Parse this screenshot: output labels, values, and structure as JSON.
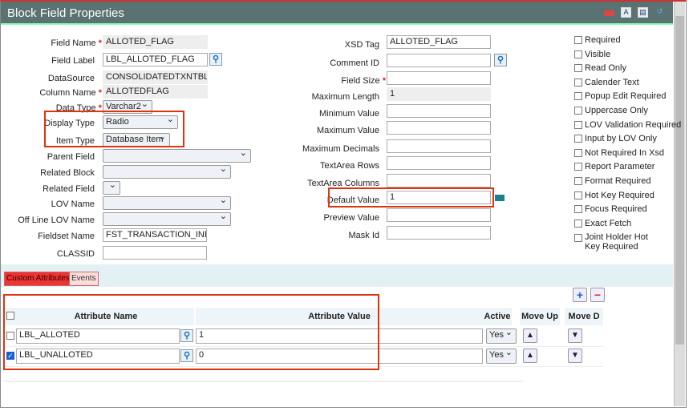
{
  "title": "Block Field Properties",
  "title_icons": [
    "minimize-icon",
    "pdf-icon",
    "export-icon",
    "help-icon"
  ],
  "left": {
    "field_name": {
      "label": "Field Name",
      "value": "ALLOTED_FLAG"
    },
    "field_label": {
      "label": "Field Label",
      "value": "LBL_ALLOTED_FLAG"
    },
    "datasource": {
      "label": "DataSource",
      "value": "CONSOLIDATEDTXNTBL"
    },
    "column_name": {
      "label": "Column Name",
      "value": "ALLOTEDFLAG"
    },
    "data_type": {
      "label": "Data Type",
      "value": "Varchar2"
    },
    "display_type": {
      "label": "Display Type",
      "value": "Radio"
    },
    "item_type": {
      "label": "Item Type",
      "value": "Database Item"
    },
    "parent_field": {
      "label": "Parent Field",
      "value": ""
    },
    "related_block": {
      "label": "Related Block",
      "value": ""
    },
    "related_field": {
      "label": "Related Field",
      "value": ""
    },
    "lov_name": {
      "label": "LOV Name",
      "value": ""
    },
    "offline_lov": {
      "label": "Off Line LOV Name",
      "value": ""
    },
    "fieldset_name": {
      "label": "Fieldset Name",
      "value": "FST_TRANSACTION_INFO"
    },
    "classid": {
      "label": "CLASSID",
      "value": ""
    }
  },
  "middle": {
    "xsd_tag": {
      "label": "XSD Tag",
      "value": "ALLOTED_FLAG"
    },
    "comment_id": {
      "label": "Comment ID",
      "value": ""
    },
    "field_size": {
      "label": "Field Size",
      "value": ""
    },
    "max_length": {
      "label": "Maximum Length",
      "value": "1"
    },
    "min_value": {
      "label": "Minimum Value",
      "value": ""
    },
    "max_value": {
      "label": "Maximum Value",
      "value": ""
    },
    "max_decimals": {
      "label": "Maximum Decimals",
      "value": ""
    },
    "textarea_rows": {
      "label": "TextArea Rows",
      "value": ""
    },
    "textarea_cols": {
      "label": "TextArea Columns",
      "value": ""
    },
    "default_value": {
      "label": "Default Value",
      "value": "1"
    },
    "preview_value": {
      "label": "Preview Value",
      "value": ""
    },
    "mask_id": {
      "label": "Mask Id",
      "value": ""
    }
  },
  "checkboxes": [
    "Required",
    "Visible",
    "Read Only",
    "Calender Text",
    "Popup Edit Required",
    "Uppercase Only",
    "LOV Validation Required",
    "Input by LOV Only",
    "Not Required In Xsd",
    "Report Parameter",
    "Format Required",
    "Hot Key Required",
    "Focus Required",
    "Exact Fetch",
    "Joint Holder Hot Key Required"
  ],
  "tabs": [
    "Custom Attributes",
    "Events"
  ],
  "table": {
    "headers": [
      "Attribute Name",
      "Attribute Value",
      "Active",
      "Move Up",
      "Move D"
    ],
    "rows": [
      {
        "checked": false,
        "name": "LBL_ALLOTED",
        "value": "1",
        "active": "Yes"
      },
      {
        "checked": true,
        "name": "LBL_UNALLOTED",
        "value": "0",
        "active": "Yes"
      }
    ],
    "add": "+",
    "remove": "−"
  }
}
